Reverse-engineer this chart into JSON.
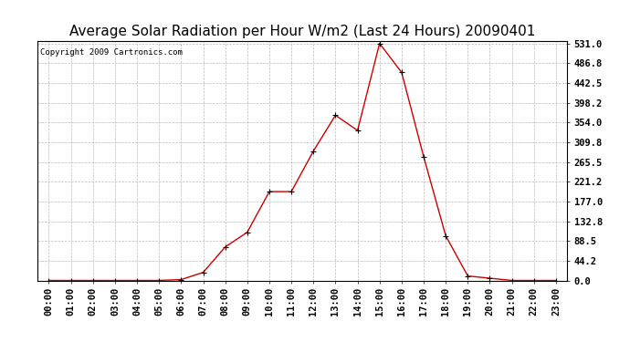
{
  "title": "Average Solar Radiation per Hour W/m2 (Last 24 Hours) 20090401",
  "copyright_text": "Copyright 2009 Cartronics.com",
  "hours": [
    "00:00",
    "01:00",
    "02:00",
    "03:00",
    "04:00",
    "05:00",
    "06:00",
    "07:00",
    "08:00",
    "09:00",
    "10:00",
    "11:00",
    "12:00",
    "13:00",
    "14:00",
    "15:00",
    "16:00",
    "17:00",
    "18:00",
    "19:00",
    "20:00",
    "21:00",
    "22:00",
    "23:00"
  ],
  "values": [
    0,
    0,
    0,
    0,
    0,
    0,
    2,
    18,
    75,
    108,
    199,
    199,
    290,
    370,
    336,
    531,
    466,
    277,
    100,
    10,
    5,
    0,
    0,
    0
  ],
  "line_color": "#cc0000",
  "marker_color": "#000000",
  "bg_color": "#ffffff",
  "grid_color": "#bbbbbb",
  "ymin": 0.0,
  "ymax": 531.0,
  "ytick_values": [
    0.0,
    44.2,
    88.5,
    132.8,
    177.0,
    221.2,
    265.5,
    309.8,
    354.0,
    398.2,
    442.5,
    486.8,
    531.0
  ],
  "title_fontsize": 11,
  "copyright_fontsize": 6.5,
  "tick_fontsize": 7.5,
  "fig_width": 6.9,
  "fig_height": 3.75,
  "dpi": 100
}
